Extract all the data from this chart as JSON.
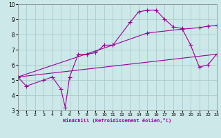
{
  "xlabel": "Windchill (Refroidissement éolien,°C)",
  "xlim": [
    0,
    23
  ],
  "ylim": [
    3,
    10
  ],
  "xticks": [
    0,
    1,
    2,
    3,
    4,
    5,
    6,
    7,
    8,
    9,
    10,
    11,
    12,
    13,
    14,
    15,
    16,
    17,
    18,
    19,
    20,
    21,
    22,
    23
  ],
  "yticks": [
    3,
    4,
    5,
    6,
    7,
    8,
    9,
    10
  ],
  "bg_color": "#cce8e8",
  "line_color": "#990099",
  "grid_color": "#aacccc",
  "line1_x": [
    0,
    1,
    3,
    4,
    5,
    5.5,
    6,
    7,
    8,
    9,
    10,
    11,
    13,
    14,
    15,
    16,
    17,
    18,
    19,
    20,
    21,
    22,
    23
  ],
  "line1_y": [
    5.2,
    4.6,
    5.0,
    5.2,
    4.4,
    3.2,
    5.2,
    6.7,
    6.7,
    6.8,
    7.3,
    7.3,
    8.8,
    9.5,
    9.6,
    9.6,
    9.0,
    8.5,
    8.4,
    7.3,
    5.85,
    6.0,
    6.7
  ],
  "line2_x": [
    0,
    11,
    15,
    19,
    21,
    22,
    23
  ],
  "line2_y": [
    5.2,
    7.3,
    8.1,
    8.35,
    8.45,
    8.55,
    8.6
  ],
  "line3_x": [
    0,
    23
  ],
  "line3_y": [
    5.2,
    6.7
  ]
}
